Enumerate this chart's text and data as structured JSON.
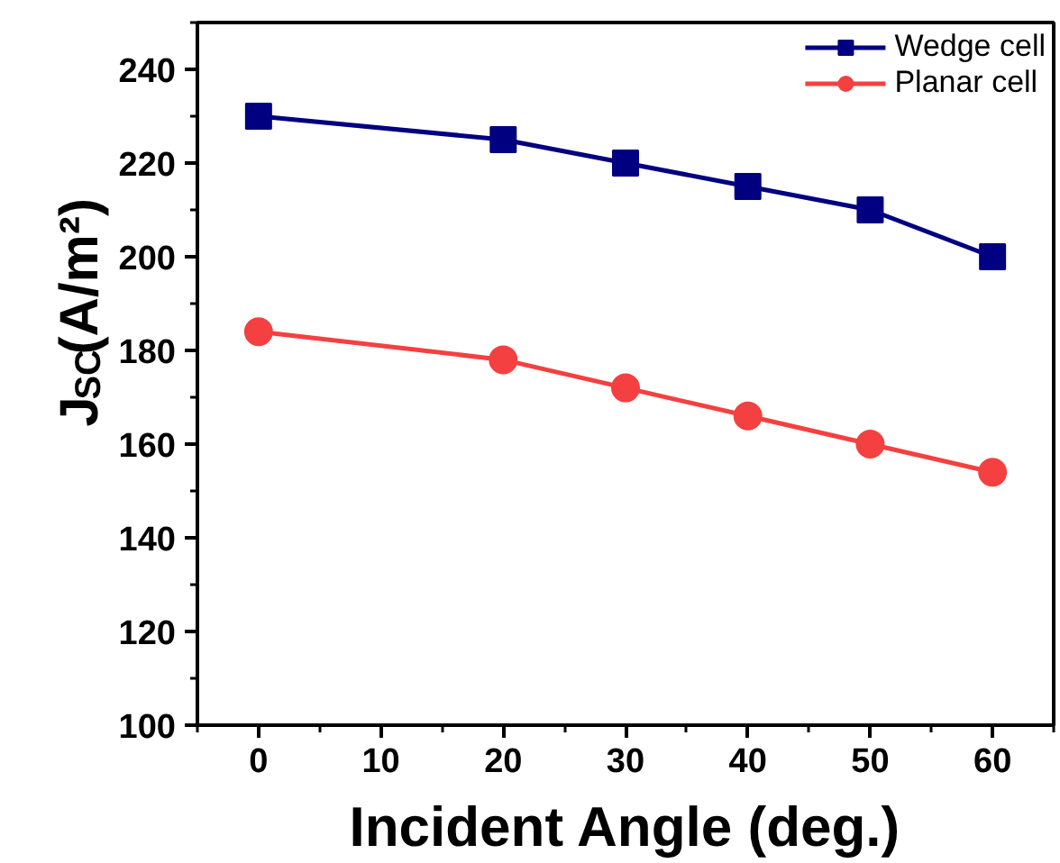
{
  "chart_data": {
    "type": "line",
    "xlabel": "Incident Angle (deg.)",
    "ylabel": "J$_{SC}$(A/m²)",
    "x": [
      0,
      20,
      30,
      40,
      50,
      60
    ],
    "series": [
      {
        "name": "Wedge cell",
        "color": "#000080",
        "marker": "square",
        "values": [
          230,
          225,
          220,
          215,
          210,
          200
        ]
      },
      {
        "name": "Planar cell",
        "color": "#f44040",
        "marker": "circle",
        "values": [
          184,
          178,
          172,
          166,
          160,
          154
        ]
      }
    ],
    "xlim": [
      -5,
      65
    ],
    "ylim": [
      100,
      250
    ],
    "xticks": [
      0,
      10,
      20,
      30,
      40,
      50,
      60
    ],
    "yticks": [
      100,
      120,
      140,
      160,
      180,
      200,
      220,
      240
    ],
    "grid": false,
    "legend": "top right",
    "line_style": "solid"
  }
}
